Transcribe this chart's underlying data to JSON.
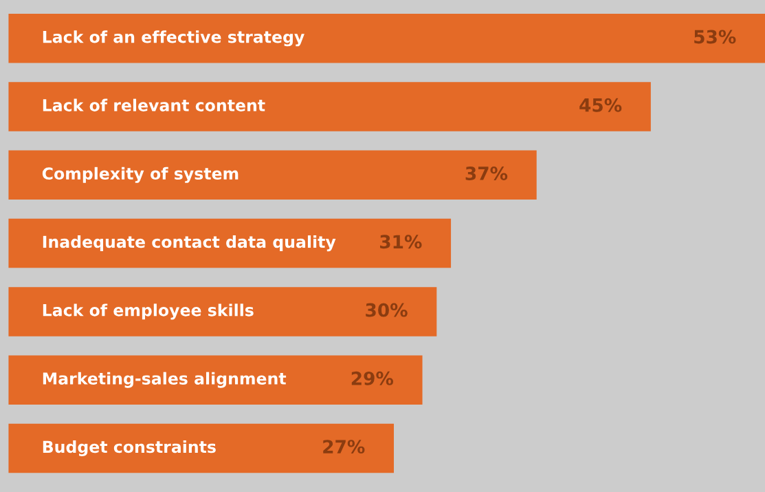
{
  "chart_data": {
    "type": "bar",
    "orientation": "horizontal",
    "categories": [
      "Lack of an effective strategy",
      "Lack of relevant content",
      "Complexity of system",
      "Inadequate contact data quality",
      "Lack of employee skills",
      "Marketing-sales alignment",
      "Budget constraints"
    ],
    "values": [
      53,
      45,
      37,
      31,
      30,
      29,
      27
    ],
    "value_labels": [
      "53%",
      "45%",
      "37%",
      "31%",
      "30%",
      "29%",
      "27%"
    ],
    "color": "#e46a27",
    "xlim": [
      0,
      53
    ],
    "tick_labels": false
  }
}
